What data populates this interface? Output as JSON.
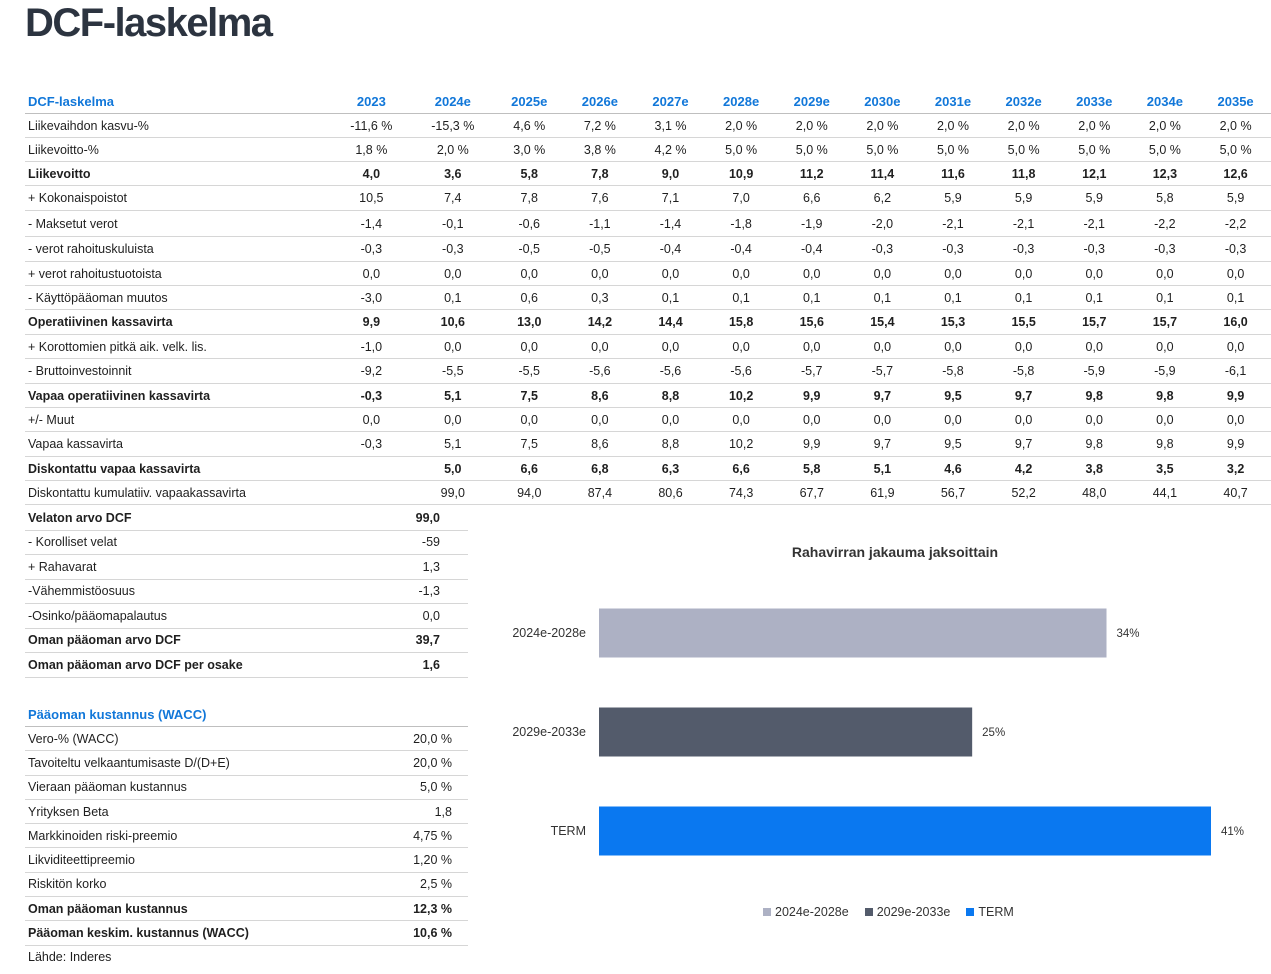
{
  "page_title": "DCF-laskelma",
  "dcf": {
    "header_label": "DCF-laskelma",
    "years": [
      "2023",
      "2024e",
      "2025e",
      "2026e",
      "2027e",
      "2028e",
      "2029e",
      "2030e",
      "2031e",
      "2032e",
      "2033e",
      "2034e",
      "2035e"
    ],
    "rows": [
      {
        "label": "Liikevaihdon kasvu-%",
        "bold": false,
        "values": [
          "-11,6 %",
          "-15,3 %",
          "4,6 %",
          "7,2 %",
          "3,1 %",
          "2,0 %",
          "2,0 %",
          "2,0 %",
          "2,0 %",
          "2,0 %",
          "2,0 %",
          "2,0 %",
          "2,0 %"
        ]
      },
      {
        "label": "Liikevoitto-%",
        "bold": false,
        "values": [
          "1,8 %",
          "2,0 %",
          "3,0 %",
          "3,8 %",
          "4,2 %",
          "5,0 %",
          "5,0 %",
          "5,0 %",
          "5,0 %",
          "5,0 %",
          "5,0 %",
          "5,0 %",
          "5,0 %"
        ]
      },
      {
        "label": "Liikevoitto",
        "bold": true,
        "values": [
          "4,0",
          "3,6",
          "5,8",
          "7,8",
          "9,0",
          "10,9",
          "11,2",
          "11,4",
          "11,6",
          "11,8",
          "12,1",
          "12,3",
          "12,6"
        ]
      },
      {
        "label": "+ Kokonaispoistot",
        "bold": false,
        "values": [
          "10,5",
          "7,4",
          "7,8",
          "7,6",
          "7,1",
          "7,0",
          "6,6",
          "6,2",
          "5,9",
          "5,9",
          "5,9",
          "5,8",
          "5,9"
        ]
      },
      {
        "label": "- Maksetut verot",
        "bold": false,
        "values": [
          "-1,4",
          "-0,1",
          "-0,6",
          "-1,1",
          "-1,4",
          "-1,8",
          "-1,9",
          "-2,0",
          "-2,1",
          "-2,1",
          "-2,1",
          "-2,2",
          "-2,2"
        ]
      },
      {
        "label": "- verot rahoituskuluista",
        "bold": false,
        "values": [
          "-0,3",
          "-0,3",
          "-0,5",
          "-0,5",
          "-0,4",
          "-0,4",
          "-0,4",
          "-0,3",
          "-0,3",
          "-0,3",
          "-0,3",
          "-0,3",
          "-0,3"
        ]
      },
      {
        "label": "+ verot rahoitustuotoista",
        "bold": false,
        "values": [
          "0,0",
          "0,0",
          "0,0",
          "0,0",
          "0,0",
          "0,0",
          "0,0",
          "0,0",
          "0,0",
          "0,0",
          "0,0",
          "0,0",
          "0,0"
        ]
      },
      {
        "label": "- Käyttöpääoman muutos",
        "bold": false,
        "values": [
          "-3,0",
          "0,1",
          "0,6",
          "0,3",
          "0,1",
          "0,1",
          "0,1",
          "0,1",
          "0,1",
          "0,1",
          "0,1",
          "0,1",
          "0,1"
        ]
      },
      {
        "label": "Operatiivinen kassavirta",
        "bold": true,
        "values": [
          "9,9",
          "10,6",
          "13,0",
          "14,2",
          "14,4",
          "15,8",
          "15,6",
          "15,4",
          "15,3",
          "15,5",
          "15,7",
          "15,7",
          "16,0"
        ]
      },
      {
        "label": "+ Korottomien pitkä aik. velk. lis.",
        "bold": false,
        "values": [
          "-1,0",
          "0,0",
          "0,0",
          "0,0",
          "0,0",
          "0,0",
          "0,0",
          "0,0",
          "0,0",
          "0,0",
          "0,0",
          "0,0",
          "0,0"
        ]
      },
      {
        "label": "- Bruttoinvestoinnit",
        "bold": false,
        "values": [
          "-9,2",
          "-5,5",
          "-5,5",
          "-5,6",
          "-5,6",
          "-5,6",
          "-5,7",
          "-5,7",
          "-5,8",
          "-5,8",
          "-5,9",
          "-5,9",
          "-6,1"
        ]
      },
      {
        "label": "Vapaa operatiivinen kassavirta",
        "bold": true,
        "values": [
          "-0,3",
          "5,1",
          "7,5",
          "8,6",
          "8,8",
          "10,2",
          "9,9",
          "9,7",
          "9,5",
          "9,7",
          "9,8",
          "9,8",
          "9,9"
        ]
      },
      {
        "label": "+/- Muut",
        "bold": false,
        "values": [
          "0,0",
          "0,0",
          "0,0",
          "0,0",
          "0,0",
          "0,0",
          "0,0",
          "0,0",
          "0,0",
          "0,0",
          "0,0",
          "0,0",
          "0,0"
        ]
      },
      {
        "label": "Vapaa kassavirta",
        "bold": false,
        "values": [
          "-0,3",
          "5,1",
          "7,5",
          "8,6",
          "8,8",
          "10,2",
          "9,9",
          "9,7",
          "9,5",
          "9,7",
          "9,8",
          "9,8",
          "9,9"
        ]
      },
      {
        "label": "Diskontattu vapaa kassavirta",
        "bold": true,
        "values": [
          "",
          "5,0",
          "6,6",
          "6,8",
          "6,3",
          "6,6",
          "5,8",
          "5,1",
          "4,6",
          "4,2",
          "3,8",
          "3,5",
          "3,2"
        ]
      },
      {
        "label": "Diskontattu kumulatiiv. vapaakassavirta",
        "bold": false,
        "values": [
          "",
          "99,0",
          "94,0",
          "87,4",
          "80,6",
          "74,3",
          "67,7",
          "61,9",
          "56,7",
          "52,2",
          "48,0",
          "44,1",
          "40,7"
        ]
      }
    ]
  },
  "valuation": [
    {
      "label": "Velaton arvo DCF",
      "value": "99,0",
      "bold": true
    },
    {
      "label": "- Korolliset velat",
      "value": "-59",
      "bold": false
    },
    {
      "label": "+ Rahavarat",
      "value": "1,3",
      "bold": false
    },
    {
      "label": "-Vähemmistöosuus",
      "value": "-1,3",
      "bold": false
    },
    {
      "label": "-Osinko/pääomapalautus",
      "value": "0,0",
      "bold": false
    },
    {
      "label": "Oman pääoman arvo DCF",
      "value": "39,7",
      "bold": true
    },
    {
      "label": "Oman pääoman arvo DCF per osake",
      "value": "1,6",
      "bold": true
    }
  ],
  "wacc": {
    "header": "Pääoman kustannus (WACC)",
    "rows": [
      {
        "label": "Vero-% (WACC)",
        "value": "20,0 %",
        "bold": false
      },
      {
        "label": "Tavoiteltu velkaantumisaste D/(D+E)",
        "value": "20,0 %",
        "bold": false
      },
      {
        "label": "Vieraan pääoman kustannus",
        "value": "5,0 %",
        "bold": false
      },
      {
        "label": "Yrityksen Beta",
        "value": "1,8",
        "bold": false
      },
      {
        "label": "Markkinoiden riski-preemio",
        "value": "4,75 %",
        "bold": false
      },
      {
        "label": "Likviditeettipreemio",
        "value": "1,20 %",
        "bold": false
      },
      {
        "label": "Riskitön korko",
        "value": "2,5 %",
        "bold": false
      },
      {
        "label": "Oman pääoman kustannus",
        "value": "12,3 %",
        "bold": true
      },
      {
        "label": "Pääoman keskim. kustannus (WACC)",
        "value": "10,6 %",
        "bold": true
      }
    ]
  },
  "source": "Lähde: Inderes",
  "chart_data": {
    "type": "bar",
    "orientation": "horizontal",
    "title": "Rahavirran jakauma jaksoittain",
    "categories": [
      "2024e-2028e",
      "2029e-2033e",
      "TERM"
    ],
    "values": [
      34,
      25,
      41
    ],
    "value_labels": [
      "34%",
      "25%",
      "41%"
    ],
    "colors": [
      "#adb1c4",
      "#535b6b",
      "#0a78f0"
    ],
    "xlim": [
      0,
      41
    ],
    "legend": [
      "2024e-2028e",
      "2029e-2033e",
      "TERM"
    ],
    "legend_position": "bottom",
    "grid": false
  }
}
